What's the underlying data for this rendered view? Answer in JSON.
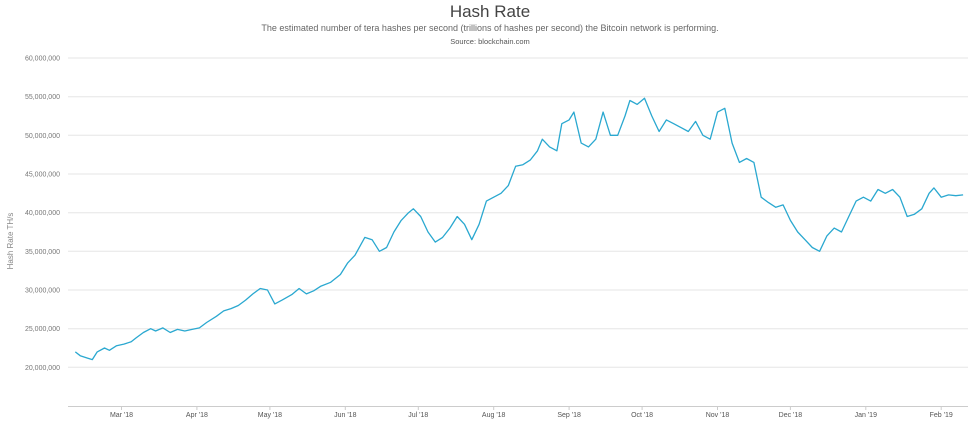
{
  "chart_data": {
    "type": "line",
    "title": "Hash Rate",
    "subtitle": "The estimated number of tera hashes per second (trillions of hashes per second) the Bitcoin network is performing.",
    "source": "Source: blockchain.com",
    "ylabel": "Hash Rate TH/s",
    "xlabel": "",
    "ylim": [
      15000000,
      60000000
    ],
    "yticks": [
      {
        "value": 20000000,
        "label": "20,000,000"
      },
      {
        "value": 25000000,
        "label": "25,000,000"
      },
      {
        "value": 30000000,
        "label": "30,000,000"
      },
      {
        "value": 35000000,
        "label": "35,000,000"
      },
      {
        "value": 40000000,
        "label": "40,000,000"
      },
      {
        "value": 45000000,
        "label": "45,000,000"
      },
      {
        "value": 50000000,
        "label": "50,000,000"
      },
      {
        "value": 55000000,
        "label": "55,000,000"
      },
      {
        "value": 60000000,
        "label": "60,000,000"
      }
    ],
    "xlim": [
      "2018-02-07",
      "2019-02-12"
    ],
    "xticks": [
      {
        "date": "2018-03-01",
        "label": "Mar '18"
      },
      {
        "date": "2018-04-01",
        "label": "Apr '18"
      },
      {
        "date": "2018-05-01",
        "label": "May '18"
      },
      {
        "date": "2018-06-01",
        "label": "Jun '18"
      },
      {
        "date": "2018-07-01",
        "label": "Jul '18"
      },
      {
        "date": "2018-08-01",
        "label": "Aug '18"
      },
      {
        "date": "2018-09-01",
        "label": "Sep '18"
      },
      {
        "date": "2018-10-01",
        "label": "Oct '18"
      },
      {
        "date": "2018-11-01",
        "label": "Nov '18"
      },
      {
        "date": "2018-12-01",
        "label": "Dec '18"
      },
      {
        "date": "2019-01-01",
        "label": "Jan '19"
      },
      {
        "date": "2019-02-01",
        "label": "Feb '19"
      }
    ],
    "grid": true,
    "legend": "none",
    "line_color": "#2aa8d0",
    "series": [
      {
        "points": [
          [
            "2018-02-10",
            22000000
          ],
          [
            "2018-02-12",
            21500000
          ],
          [
            "2018-02-15",
            21200000
          ],
          [
            "2018-02-17",
            21000000
          ],
          [
            "2018-02-19",
            22000000
          ],
          [
            "2018-02-22",
            22500000
          ],
          [
            "2018-02-24",
            22200000
          ],
          [
            "2018-02-27",
            22800000
          ],
          [
            "2018-03-02",
            23000000
          ],
          [
            "2018-03-05",
            23300000
          ],
          [
            "2018-03-07",
            23800000
          ],
          [
            "2018-03-10",
            24500000
          ],
          [
            "2018-03-13",
            25000000
          ],
          [
            "2018-03-15",
            24700000
          ],
          [
            "2018-03-18",
            25100000
          ],
          [
            "2018-03-21",
            24500000
          ],
          [
            "2018-03-24",
            24900000
          ],
          [
            "2018-03-27",
            24700000
          ],
          [
            "2018-03-30",
            24900000
          ],
          [
            "2018-04-02",
            25100000
          ],
          [
            "2018-04-05",
            25800000
          ],
          [
            "2018-04-09",
            26600000
          ],
          [
            "2018-04-12",
            27300000
          ],
          [
            "2018-04-15",
            27600000
          ],
          [
            "2018-04-18",
            28000000
          ],
          [
            "2018-04-21",
            28700000
          ],
          [
            "2018-04-24",
            29500000
          ],
          [
            "2018-04-27",
            30200000
          ],
          [
            "2018-04-30",
            30000000
          ],
          [
            "2018-05-03",
            28200000
          ],
          [
            "2018-05-06",
            28700000
          ],
          [
            "2018-05-10",
            29400000
          ],
          [
            "2018-05-13",
            30200000
          ],
          [
            "2018-05-16",
            29500000
          ],
          [
            "2018-05-19",
            29900000
          ],
          [
            "2018-05-22",
            30500000
          ],
          [
            "2018-05-26",
            31000000
          ],
          [
            "2018-05-30",
            32000000
          ],
          [
            "2018-06-02",
            33500000
          ],
          [
            "2018-06-05",
            34500000
          ],
          [
            "2018-06-09",
            36800000
          ],
          [
            "2018-06-12",
            36500000
          ],
          [
            "2018-06-15",
            35000000
          ],
          [
            "2018-06-18",
            35500000
          ],
          [
            "2018-06-21",
            37500000
          ],
          [
            "2018-06-24",
            39000000
          ],
          [
            "2018-06-27",
            40000000
          ],
          [
            "2018-06-29",
            40500000
          ],
          [
            "2018-07-02",
            39500000
          ],
          [
            "2018-07-05",
            37500000
          ],
          [
            "2018-07-08",
            36200000
          ],
          [
            "2018-07-11",
            36800000
          ],
          [
            "2018-07-14",
            38000000
          ],
          [
            "2018-07-17",
            39500000
          ],
          [
            "2018-07-20",
            38500000
          ],
          [
            "2018-07-23",
            36500000
          ],
          [
            "2018-07-26",
            38500000
          ],
          [
            "2018-07-29",
            41500000
          ],
          [
            "2018-08-01",
            42000000
          ],
          [
            "2018-08-04",
            42500000
          ],
          [
            "2018-08-07",
            43500000
          ],
          [
            "2018-08-10",
            46000000
          ],
          [
            "2018-08-13",
            46200000
          ],
          [
            "2018-08-16",
            46800000
          ],
          [
            "2018-08-19",
            48000000
          ],
          [
            "2018-08-21",
            49500000
          ],
          [
            "2018-08-24",
            48500000
          ],
          [
            "2018-08-27",
            48000000
          ],
          [
            "2018-08-29",
            51500000
          ],
          [
            "2018-09-01",
            52000000
          ],
          [
            "2018-09-03",
            53000000
          ],
          [
            "2018-09-06",
            49000000
          ],
          [
            "2018-09-09",
            48500000
          ],
          [
            "2018-09-12",
            49500000
          ],
          [
            "2018-09-15",
            53000000
          ],
          [
            "2018-09-18",
            50000000
          ],
          [
            "2018-09-21",
            50000000
          ],
          [
            "2018-09-24",
            52500000
          ],
          [
            "2018-09-26",
            54500000
          ],
          [
            "2018-09-29",
            54000000
          ],
          [
            "2018-10-02",
            54800000
          ],
          [
            "2018-10-05",
            52500000
          ],
          [
            "2018-10-08",
            50500000
          ],
          [
            "2018-10-11",
            52000000
          ],
          [
            "2018-10-14",
            51500000
          ],
          [
            "2018-10-17",
            51000000
          ],
          [
            "2018-10-20",
            50500000
          ],
          [
            "2018-10-23",
            51800000
          ],
          [
            "2018-10-26",
            50000000
          ],
          [
            "2018-10-29",
            49500000
          ],
          [
            "2018-11-01",
            53000000
          ],
          [
            "2018-11-04",
            53500000
          ],
          [
            "2018-11-07",
            49000000
          ],
          [
            "2018-11-10",
            46500000
          ],
          [
            "2018-11-13",
            47000000
          ],
          [
            "2018-11-16",
            46500000
          ],
          [
            "2018-11-19",
            42000000
          ],
          [
            "2018-11-22",
            41300000
          ],
          [
            "2018-11-25",
            40700000
          ],
          [
            "2018-11-28",
            41000000
          ],
          [
            "2018-12-01",
            39000000
          ],
          [
            "2018-12-04",
            37500000
          ],
          [
            "2018-12-07",
            36500000
          ],
          [
            "2018-12-10",
            35500000
          ],
          [
            "2018-12-13",
            35000000
          ],
          [
            "2018-12-16",
            37000000
          ],
          [
            "2018-12-19",
            38000000
          ],
          [
            "2018-12-22",
            37500000
          ],
          [
            "2018-12-25",
            39500000
          ],
          [
            "2018-12-28",
            41500000
          ],
          [
            "2018-12-31",
            42000000
          ],
          [
            "2019-01-03",
            41500000
          ],
          [
            "2019-01-06",
            43000000
          ],
          [
            "2019-01-09",
            42500000
          ],
          [
            "2019-01-12",
            43000000
          ],
          [
            "2019-01-15",
            42000000
          ],
          [
            "2019-01-18",
            39500000
          ],
          [
            "2019-01-21",
            39800000
          ],
          [
            "2019-01-24",
            40500000
          ],
          [
            "2019-01-27",
            42500000
          ],
          [
            "2019-01-29",
            43200000
          ],
          [
            "2019-02-01",
            42000000
          ],
          [
            "2019-02-04",
            42300000
          ],
          [
            "2019-02-07",
            42200000
          ],
          [
            "2019-02-10",
            42300000
          ]
        ]
      }
    ]
  }
}
